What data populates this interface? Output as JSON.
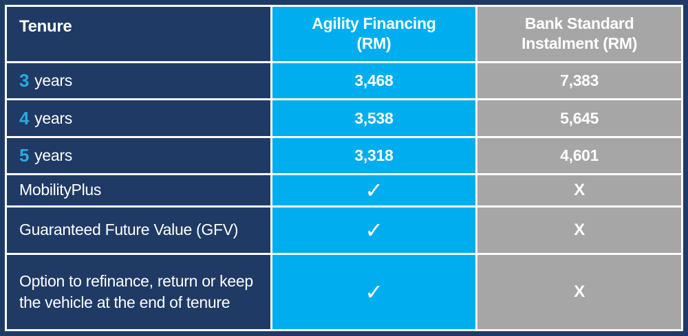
{
  "colors": {
    "navy": "#1F3A64",
    "cyan": "#00AEEF",
    "gray": "#A6A6A6",
    "gridline": "#FFFFFF",
    "tenure_number_accent": "#29ABE2",
    "text": "#FFFFFF"
  },
  "table": {
    "header": {
      "col1": "Tenure",
      "col2": "Agility Financing (RM)",
      "col3": "Bank Standard Instalment (RM)"
    },
    "rows": [
      {
        "prefix": "3",
        "label": "years",
        "agility": "3,468",
        "bank": "7,383"
      },
      {
        "prefix": "4",
        "label": "years",
        "agility": "3,538",
        "bank": "5,645"
      },
      {
        "prefix": "5",
        "label": "years",
        "agility": "3,318",
        "bank": "4,601"
      },
      {
        "label": "MobilityPlus",
        "agility": "✓",
        "bank": "X"
      },
      {
        "label": "Guaranteed Future Value (GFV)",
        "agility": "✓",
        "bank": "X"
      },
      {
        "label": "Option to refinance, return or keep the vehicle at the end of tenure",
        "agility": "✓",
        "bank": "X"
      }
    ]
  },
  "chart_data": {
    "type": "table",
    "title": "Agility Financing vs Bank Standard Instalment comparison",
    "columns": [
      "Tenure",
      "Agility Financing (RM)",
      "Bank Standard Instalment (RM)"
    ],
    "rows": [
      [
        "3 years",
        "3,468",
        "7,383"
      ],
      [
        "4 years",
        "3,538",
        "5,645"
      ],
      [
        "5 years",
        "3,318",
        "4,601"
      ],
      [
        "MobilityPlus",
        "✓",
        "X"
      ],
      [
        "Guaranteed Future Value (GFV)",
        "✓",
        "X"
      ],
      [
        "Option to refinance, return or keep the vehicle at the end of tenure",
        "✓",
        "X"
      ]
    ],
    "monthly_instalment_values": {
      "agility_financing_rm": [
        3468,
        3538,
        3318
      ],
      "bank_standard_instalment_rm": [
        7383,
        5645,
        4601
      ],
      "tenure_years": [
        3,
        4,
        5
      ]
    },
    "feature_availability": {
      "MobilityPlus": {
        "agility_financing": true,
        "bank_standard_instalment": false
      },
      "Guaranteed Future Value (GFV)": {
        "agility_financing": true,
        "bank_standard_instalment": false
      },
      "Option to refinance, return or keep the vehicle at the end of tenure": {
        "agility_financing": true,
        "bank_standard_instalment": false
      }
    }
  }
}
